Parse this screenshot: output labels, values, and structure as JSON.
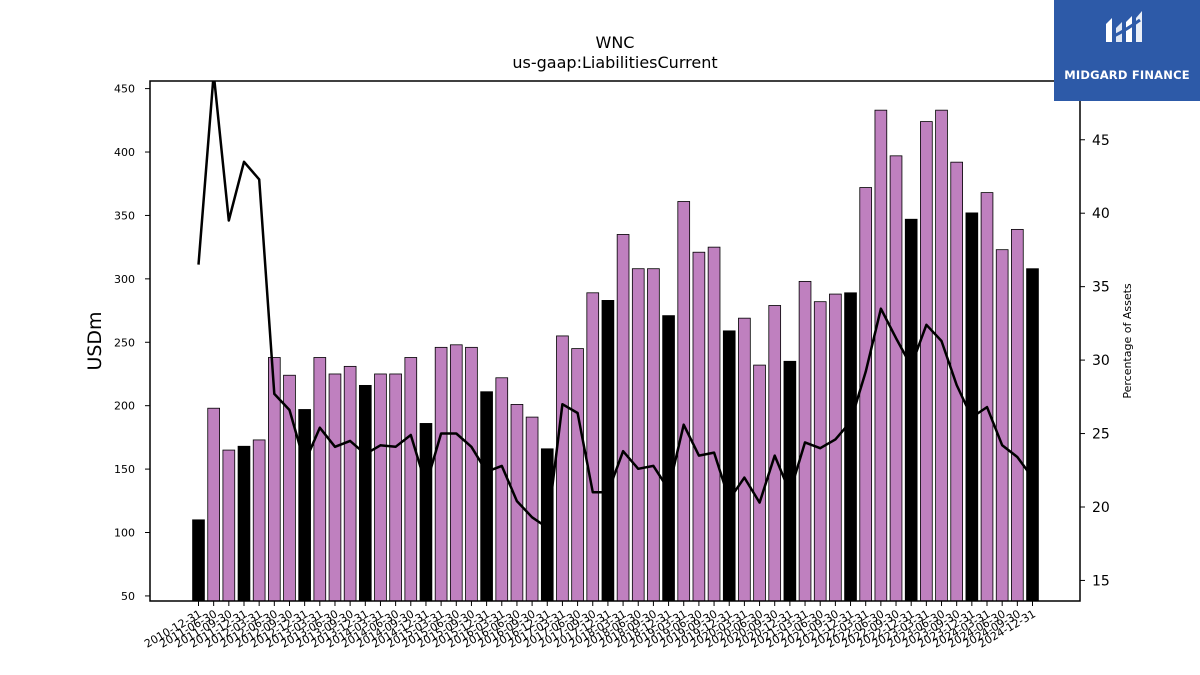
{
  "chart_data": {
    "type": "bar",
    "title": "WNC",
    "subtitle": "us-gaap:LiabilitiesCurrent",
    "ylabel": "USDm",
    "y2label": "Percentage of Assets",
    "ylim": [
      46,
      456
    ],
    "y2lim": [
      13.6,
      49
    ],
    "yticks": [
      50,
      100,
      150,
      200,
      250,
      300,
      350,
      400,
      450
    ],
    "y2ticks": [
      15,
      20,
      25,
      30,
      35,
      40,
      45
    ],
    "colors": {
      "bar": "#bf80bf",
      "bar_q4": "#000000",
      "line": "#000000"
    },
    "categories": [
      "2010-12-31",
      "2011-03-31",
      "2011-06-30",
      "2011-09-30",
      "2011-12-31",
      "2012-03-31",
      "2012-06-30",
      "2012-09-30",
      "2012-12-31",
      "2013-03-31",
      "2013-06-30",
      "2013-09-30",
      "2013-12-31",
      "2014-03-31",
      "2014-06-30",
      "2014-09-30",
      "2014-12-31",
      "2015-03-31",
      "2015-06-30",
      "2015-09-30",
      "2015-12-31",
      "2016-03-31",
      "2016-06-30",
      "2016-09-30",
      "2016-12-31",
      "2017-03-31",
      "2017-06-30",
      "2017-09-30",
      "2017-12-31",
      "2018-03-31",
      "2018-06-30",
      "2018-09-30",
      "2018-12-31",
      "2019-03-31",
      "2019-06-30",
      "2019-09-30",
      "2019-12-31",
      "2020-03-31",
      "2020-06-30",
      "2020-09-30",
      "2020-12-31",
      "2021-03-31",
      "2021-06-30",
      "2021-09-30",
      "2021-12-31",
      "2022-03-31",
      "2022-06-30",
      "2022-09-30",
      "2022-12-31",
      "2023-03-31",
      "2023-06-30",
      "2023-09-30",
      "2023-12-31",
      "2024-03-31",
      "2024-06-30",
      "2024-09-30"
    ],
    "tick_labels": [
      "2010-12-31",
      "2011-06-30",
      "2011-09-30",
      "2011-12-31",
      "2012-03-31",
      "2012-06-30",
      "2012-09-30",
      "2012-12-31",
      "2013-03-31",
      "2013-06-30",
      "2013-09-30",
      "2013-12-31",
      "2014-03-31",
      "2014-06-30",
      "2014-09-30",
      "2014-12-31",
      "2015-03-31",
      "2015-06-30",
      "2015-09-30",
      "2015-12-31",
      "2016-03-31",
      "2016-06-30",
      "2016-09-30",
      "2016-12-31",
      "2017-03-31",
      "2017-06-30",
      "2017-09-30",
      "2017-12-31",
      "2018-03-31",
      "2018-06-30",
      "2018-09-30",
      "2018-12-31",
      "2019-03-31",
      "2019-06-30",
      "2019-09-30",
      "2019-12-31",
      "2020-03-31",
      "2020-06-30",
      "2020-09-30",
      "2020-12-31",
      "2021-03-31",
      "2021-06-30",
      "2021-09-30",
      "2021-12-31",
      "2022-03-31",
      "2022-06-30",
      "2022-09-30",
      "2022-12-31",
      "2023-03-31",
      "2023-06-30",
      "2023-09-30",
      "2023-12-31",
      "2024-03-31",
      "2024-06-30",
      "2024-09-30",
      "2024-12-31"
    ],
    "series": [
      {
        "type": "bar",
        "values": [
          110,
          198,
          165,
          168,
          173,
          238,
          224,
          197,
          238,
          225,
          231,
          216,
          225,
          225,
          238,
          186,
          246,
          248,
          246,
          211,
          222,
          201,
          191,
          166,
          255,
          245,
          289,
          283,
          335,
          308,
          308,
          271,
          361,
          321,
          325,
          259,
          269,
          232,
          279,
          235,
          298,
          282,
          288,
          289,
          372,
          433,
          397,
          347,
          424,
          433,
          392,
          352,
          368,
          323,
          339,
          308
        ],
        "q4_flags": [
          1,
          0,
          0,
          1,
          0,
          0,
          0,
          1,
          0,
          0,
          0,
          1,
          0,
          0,
          0,
          1,
          0,
          0,
          0,
          1,
          0,
          0,
          0,
          1,
          0,
          0,
          0,
          1,
          0,
          0,
          0,
          1,
          0,
          0,
          0,
          1,
          0,
          0,
          0,
          1,
          0,
          0,
          0,
          1,
          0,
          0,
          0,
          1,
          0,
          0,
          0,
          1,
          0,
          0,
          0,
          1
        ]
      },
      {
        "type": "line",
        "axis": "right",
        "values": [
          36.5,
          49.5,
          39.5,
          43.5,
          42.3,
          27.7,
          26.6,
          23.0,
          25.4,
          24.1,
          24.5,
          23.6,
          24.2,
          24.1,
          24.9,
          21.5,
          25.0,
          25.0,
          24.1,
          22.4,
          22.8,
          20.4,
          19.3,
          18.6,
          27.0,
          26.4,
          21.0,
          21.0,
          23.8,
          22.6,
          22.8,
          21.2,
          25.6,
          23.5,
          23.7,
          20.5,
          22.0,
          20.3,
          23.5,
          21.0,
          24.4,
          24.0,
          24.6,
          25.8,
          29.2,
          33.5,
          31.5,
          29.6,
          32.4,
          31.3,
          28.3,
          26.1,
          26.8,
          24.2,
          23.4,
          22.0
        ]
      }
    ]
  },
  "logo": {
    "text": "MIDGARD FINANCE"
  }
}
